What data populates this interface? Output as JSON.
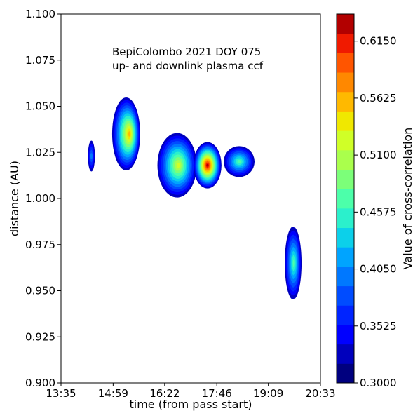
{
  "chart_data": {
    "type": "contour",
    "title_lines": [
      "BepiColombo 2021 DOY 075",
      "up- and downlink plasma ccf"
    ],
    "xlabel": "time (from pass start)",
    "ylabel": "distance (AU)",
    "colorbar_label": "Value of cross-correlation",
    "x_ticks": [
      "13:35",
      "14:59",
      "16:22",
      "17:46",
      "19:09",
      "20:33"
    ],
    "y_ticks": [
      "0.900",
      "0.925",
      "0.950",
      "0.975",
      "1.000",
      "1.025",
      "1.050",
      "1.075",
      "1.100"
    ],
    "ylim": [
      0.9,
      1.1
    ],
    "colorbar_ticks": [
      "0.3000",
      "0.3525",
      "0.4050",
      "0.4575",
      "0.5100",
      "0.5625",
      "0.6150"
    ],
    "colorbar_range": [
      0.3,
      0.64
    ],
    "levels": 17,
    "colors": [
      "#00007f",
      "#0000bd",
      "#0000ff",
      "#0024ff",
      "#004cff",
      "#0078ff",
      "#00a4ff",
      "#0cd0ea",
      "#2bf0cc",
      "#4cffaa",
      "#7cff79",
      "#aaff4c",
      "#d0ff27",
      "#f0e800",
      "#ffb900",
      "#ff8800",
      "#ff5500",
      "#f01a00",
      "#b20000"
    ],
    "blobs": [
      {
        "t": "14:24",
        "d": 1.023,
        "peak": 0.4
      },
      {
        "t": "15:20",
        "d": 1.035,
        "peak": 0.56
      },
      {
        "t": "16:42",
        "d": 1.018,
        "peak": 0.51
      },
      {
        "t": "17:31",
        "d": 1.018,
        "peak": 0.62
      },
      {
        "t": "18:22",
        "d": 1.02,
        "peak": 0.47
      },
      {
        "t": "19:49",
        "d": 0.965,
        "peak": 0.46
      }
    ]
  }
}
